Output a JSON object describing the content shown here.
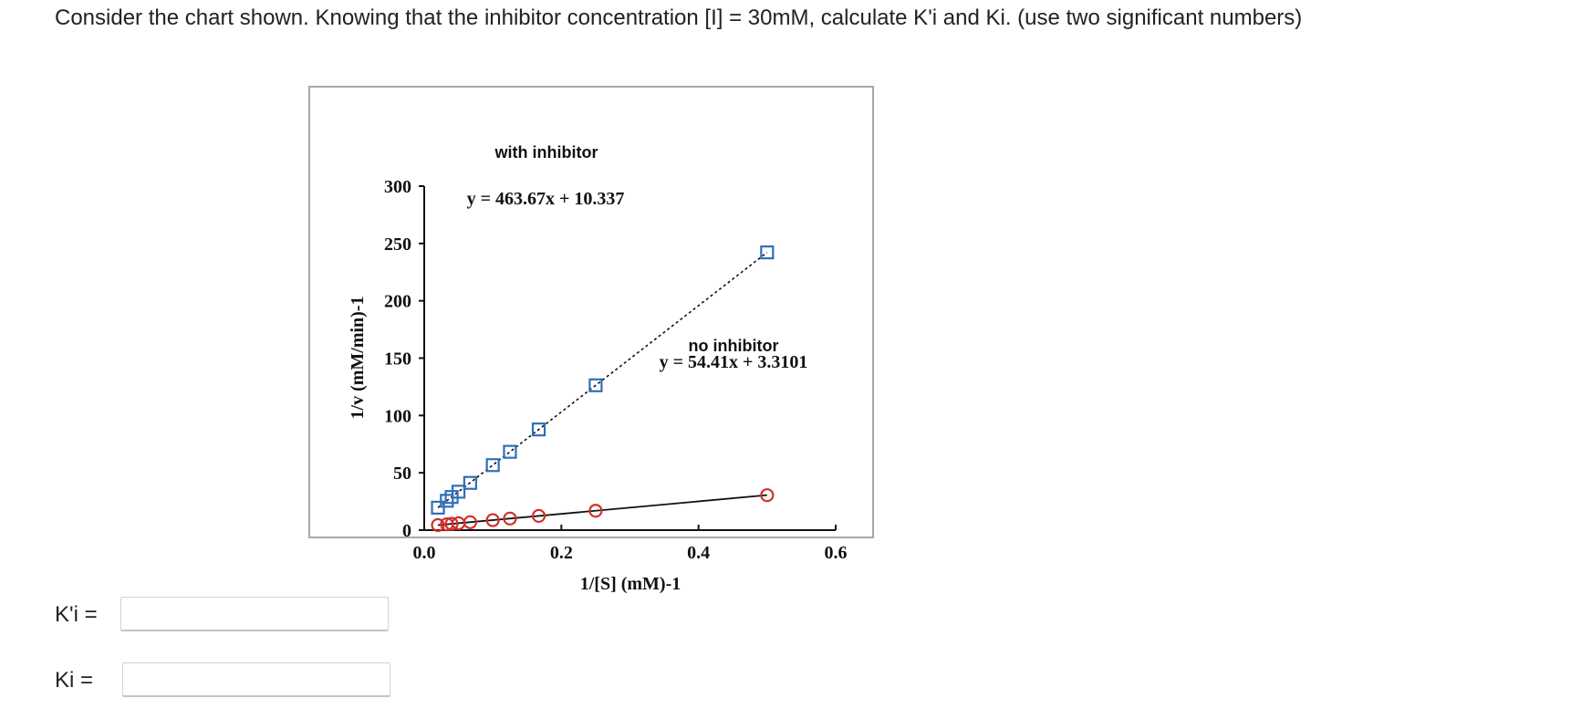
{
  "question": {
    "text": "Consider the chart shown. Knowing that the inhibitor concentration [I] = 30mM, calculate K'i and Ki. (use two significant numbers)"
  },
  "chart_data": {
    "type": "scatter",
    "title": "",
    "xlabel": "1/[S] (mM)-1",
    "ylabel": "1/v (mM/min)-1",
    "xlim": [
      0,
      0.6
    ],
    "ylim": [
      0,
      300
    ],
    "x_ticks": [
      "0.0",
      "0.2",
      "0.4",
      "0.6"
    ],
    "y_ticks": [
      "0",
      "50",
      "100",
      "150",
      "200",
      "250",
      "300"
    ],
    "grid": false,
    "series": [
      {
        "name": "with inhibitor",
        "marker": "square",
        "color": "#2e6fba",
        "line_style": "dotted",
        "equation": "y = 463.67x + 10.337",
        "slope": 463.67,
        "intercept": 10.337,
        "x": [
          0.02,
          0.033,
          0.04,
          0.05,
          0.067,
          0.1,
          0.125,
          0.167,
          0.25,
          0.5
        ],
        "values": [
          19.6,
          25.6,
          28.9,
          33.5,
          41.2,
          56.7,
          68.3,
          87.8,
          126.3,
          242.2
        ]
      },
      {
        "name": "no inhibitor",
        "marker": "circle",
        "color": "#d0302a",
        "line_style": "solid",
        "equation": "y = 54.41x + 3.3101",
        "slope": 54.41,
        "intercept": 3.3101,
        "x": [
          0.02,
          0.033,
          0.04,
          0.05,
          0.067,
          0.1,
          0.125,
          0.167,
          0.25,
          0.5
        ],
        "values": [
          4.4,
          5.1,
          5.5,
          6.0,
          6.9,
          8.7,
          10.1,
          12.4,
          16.9,
          30.5
        ]
      }
    ],
    "annotations": [
      {
        "text": "with inhibitor",
        "at": [
          0.18,
          250
        ]
      },
      {
        "text": "y = 463.67x + 10.337",
        "at": [
          0.18,
          209
        ]
      },
      {
        "text": "no inhibitor",
        "at": [
          0.45,
          81
        ]
      },
      {
        "text": "y = 54.41x + 3.3101",
        "at": [
          0.45,
          68
        ]
      }
    ]
  },
  "answers": {
    "kpi_label": "K'i =",
    "kpi_value": "",
    "ki_label": "Ki =",
    "ki_value": ""
  }
}
